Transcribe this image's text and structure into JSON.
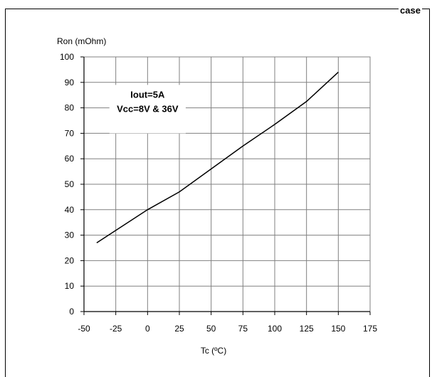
{
  "header": {
    "cut_text": "case"
  },
  "chart_data": {
    "type": "line",
    "title": "",
    "ylabel": "Ron (mOhm)",
    "xlabel": "Tc (ºC)",
    "xlim": [
      -50,
      175
    ],
    "ylim": [
      0,
      100
    ],
    "x_ticks": [
      "-50",
      "-25",
      "0",
      "25",
      "50",
      "75",
      "100",
      "125",
      "150",
      "175"
    ],
    "y_ticks": [
      "0",
      "10",
      "20",
      "30",
      "40",
      "50",
      "60",
      "70",
      "80",
      "90",
      "100"
    ],
    "grid": true,
    "annotation": [
      "Iout=5A",
      "Vcc=8V & 36V"
    ],
    "series": [
      {
        "x": [
          -40,
          0,
          25,
          50,
          75,
          100,
          125,
          150
        ],
        "y": [
          27,
          40,
          47,
          56,
          65,
          73.5,
          82.5,
          94
        ]
      }
    ],
    "line_color": "#000000",
    "grid_color": "#808080"
  }
}
